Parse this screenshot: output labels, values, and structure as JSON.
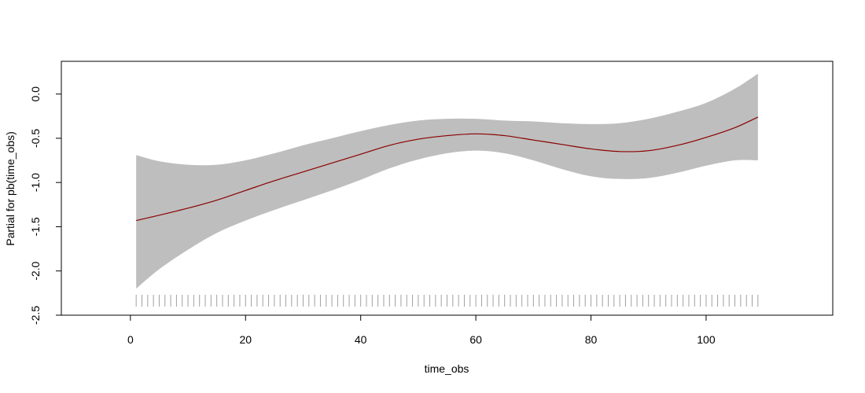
{
  "chart_data": {
    "type": "line",
    "title": "",
    "xlabel": "time_obs",
    "ylabel": "Partial for pb(time_obs)",
    "xlim": [
      -12,
      122
    ],
    "ylim": [
      -2.5,
      0.37
    ],
    "x_ticks": [
      0,
      20,
      40,
      60,
      80,
      100
    ],
    "x_tick_labels": [
      "0",
      "20",
      "40",
      "60",
      "80",
      "100"
    ],
    "y_ticks": [
      0.0,
      -0.5,
      -1.0,
      -1.5,
      -2.0,
      -2.5
    ],
    "y_tick_labels": [
      "0.0",
      "-0.5",
      "-1.0",
      "-1.5",
      "-2.0",
      "-2.5"
    ],
    "grid": false,
    "legend": "none",
    "colors": {
      "fit": "#8b0000",
      "band": "#bebebe",
      "rug": "#a0a0a0",
      "frame": "#000000"
    },
    "series": [
      {
        "x": [
          1,
          5,
          10,
          15,
          20,
          25,
          30,
          35,
          40,
          45,
          50,
          55,
          60,
          65,
          70,
          75,
          80,
          85,
          90,
          95,
          100,
          105,
          109
        ],
        "fit": [
          -1.43,
          -1.37,
          -1.29,
          -1.2,
          -1.09,
          -0.98,
          -0.88,
          -0.78,
          -0.68,
          -0.58,
          -0.51,
          -0.47,
          -0.45,
          -0.47,
          -0.52,
          -0.57,
          -0.62,
          -0.65,
          -0.64,
          -0.58,
          -0.49,
          -0.38,
          -0.26
        ],
        "upper": [
          -0.69,
          -0.76,
          -0.8,
          -0.8,
          -0.75,
          -0.67,
          -0.58,
          -0.5,
          -0.42,
          -0.35,
          -0.3,
          -0.28,
          -0.28,
          -0.3,
          -0.31,
          -0.33,
          -0.34,
          -0.33,
          -0.28,
          -0.2,
          -0.1,
          0.06,
          0.23
        ],
        "lower": [
          -2.2,
          -1.98,
          -1.76,
          -1.57,
          -1.43,
          -1.31,
          -1.2,
          -1.09,
          -0.97,
          -0.84,
          -0.74,
          -0.67,
          -0.64,
          -0.67,
          -0.75,
          -0.85,
          -0.93,
          -0.96,
          -0.95,
          -0.89,
          -0.81,
          -0.75,
          -0.75
        ]
      }
    ],
    "rug": {
      "x_start": 1,
      "x_end": 109,
      "step": 1
    }
  }
}
